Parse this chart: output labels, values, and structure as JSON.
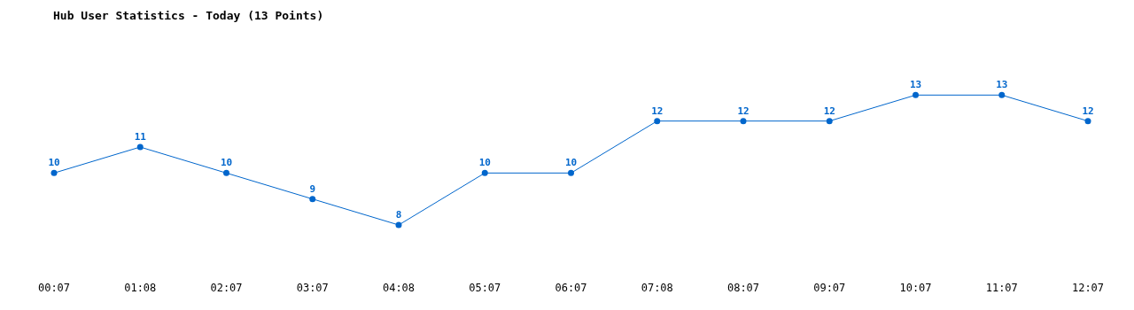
{
  "chart_data": {
    "type": "line",
    "title": "Hub User Statistics - Today (13 Points)",
    "categories": [
      "00:07",
      "01:08",
      "02:07",
      "03:07",
      "04:08",
      "05:07",
      "06:07",
      "07:08",
      "08:07",
      "09:07",
      "10:07",
      "11:07",
      "12:07"
    ],
    "series": [
      {
        "color": "#0066cc",
        "values": [
          10,
          11,
          10,
          9,
          8,
          10,
          10,
          12,
          12,
          12,
          13,
          13,
          12
        ]
      }
    ],
    "data_labels": true,
    "marker": "circle",
    "line_style": "solid",
    "grid": false,
    "legend": false
  }
}
